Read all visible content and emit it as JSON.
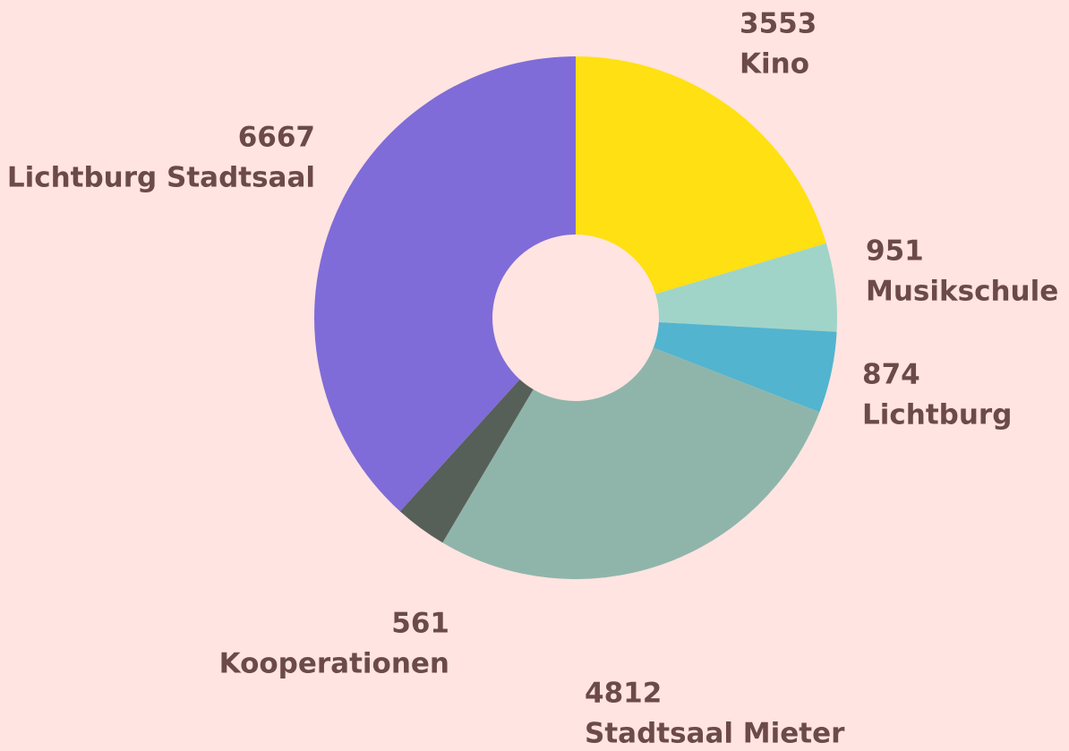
{
  "chart_data": {
    "type": "donut",
    "categories": [
      "Kino",
      "Musikschule",
      "Lichtburg",
      "Stadtsaal Mieter",
      "Kooperationen",
      "Lichtburg Stadtsaal"
    ],
    "values": [
      3553,
      951,
      874,
      4812,
      561,
      6667
    ],
    "colors": [
      "#ffe012",
      "#a0d4c8",
      "#52b4cf",
      "#8fb5ab",
      "#566059",
      "#7f6cd8"
    ]
  }
}
